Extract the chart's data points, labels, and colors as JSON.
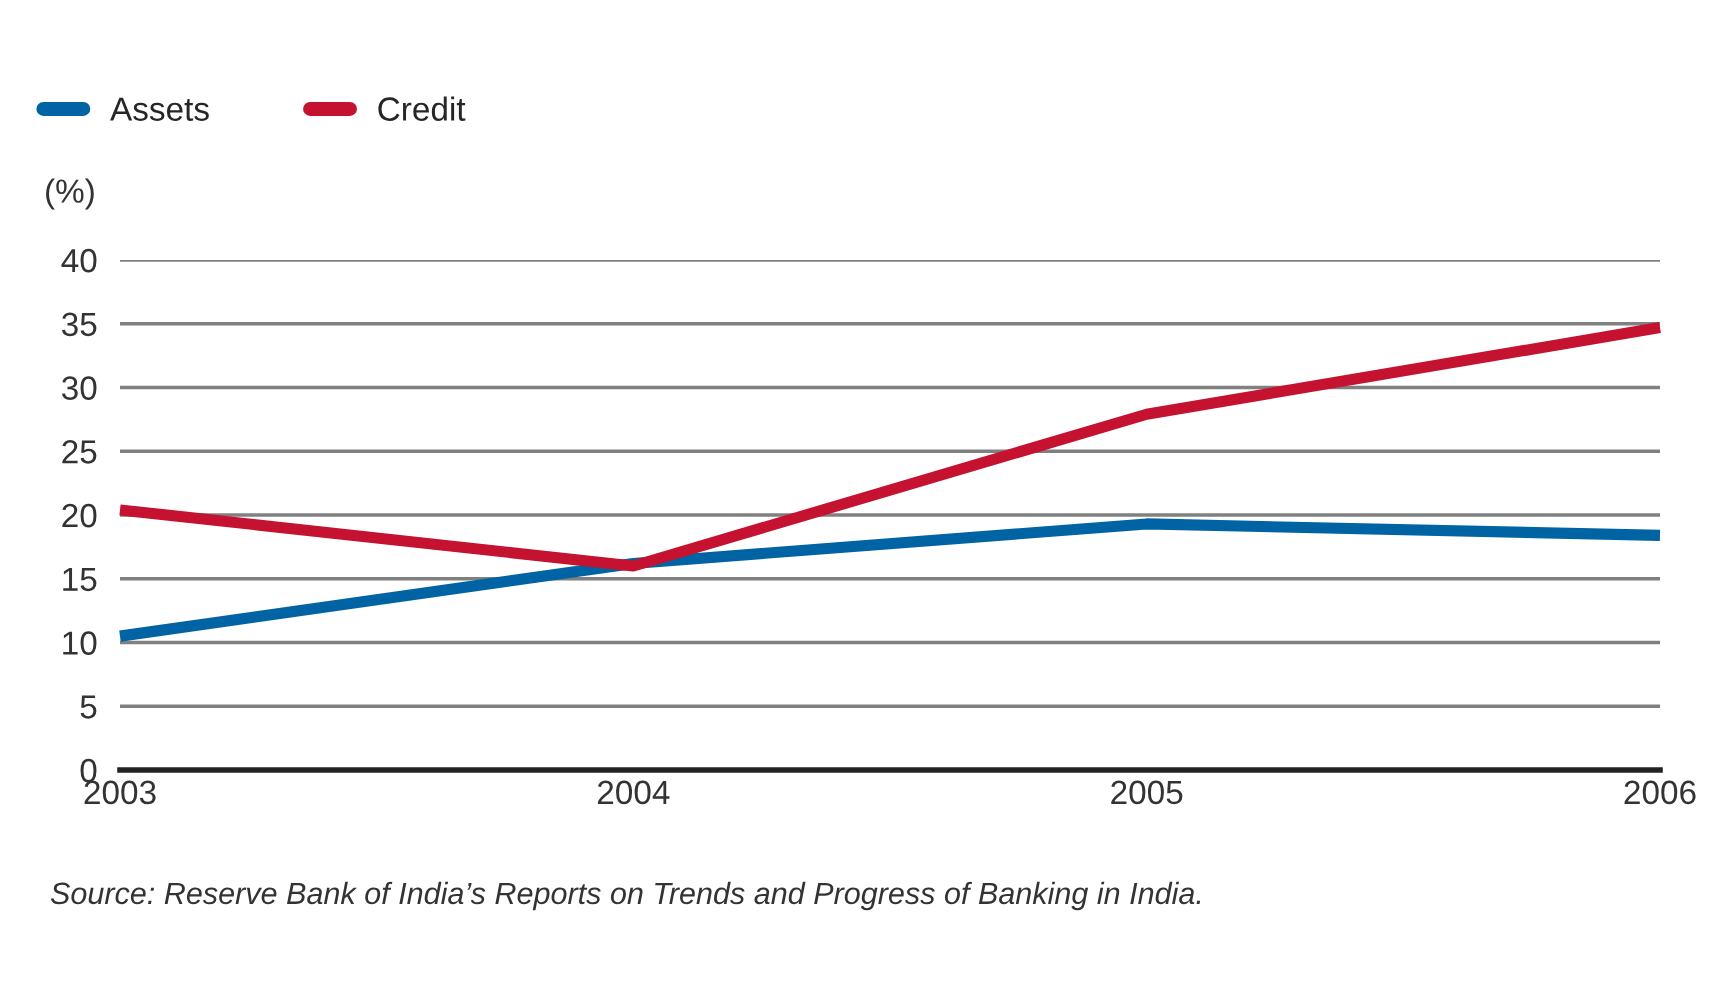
{
  "chart_data": {
    "type": "line",
    "ylabel": "(%)",
    "categories": [
      "2003",
      "2004",
      "2005",
      "2006"
    ],
    "series": [
      {
        "name": "Assets",
        "color": "#0063a3",
        "values": [
          10.5,
          16.2,
          19.3,
          18.4
        ]
      },
      {
        "name": "Credit",
        "color": "#c41230",
        "values": [
          20.4,
          16.0,
          27.9,
          34.7
        ]
      }
    ],
    "ylim": [
      0,
      40
    ],
    "yticks": [
      0,
      5,
      10,
      15,
      20,
      25,
      30,
      35,
      40
    ],
    "grid": "y",
    "legend": "top left",
    "marker": "none",
    "line_style": "solid",
    "annotations": [
      "Source: Reserve Bank of India’s Reports on Trends and Progress of Banking in India."
    ]
  }
}
